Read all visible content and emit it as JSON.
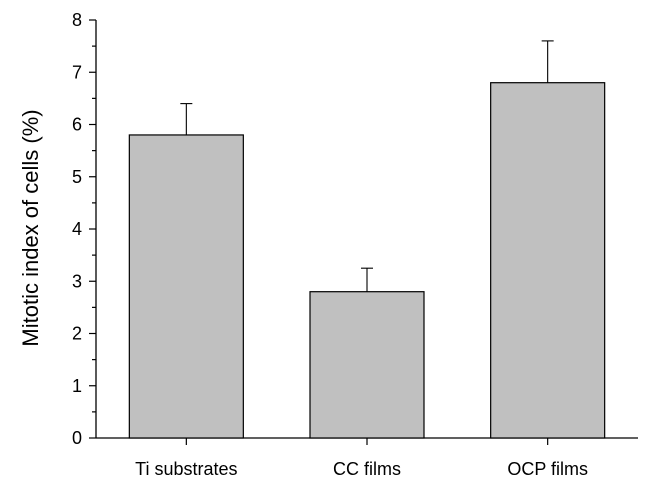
{
  "chart_data": {
    "type": "bar",
    "categories": [
      "Ti substrates",
      "CC films",
      "OCP films"
    ],
    "values": [
      5.8,
      2.8,
      6.8
    ],
    "error_upper": [
      6.4,
      3.25,
      7.6
    ],
    "title": "",
    "xlabel": "",
    "ylabel": "Mitotic index of cells (%)",
    "ylim": [
      0,
      8
    ],
    "yticks": [
      "0",
      "1",
      "2",
      "3",
      "4",
      "5",
      "6",
      "7",
      "8"
    ],
    "grid": false,
    "legend": "none",
    "colors": {
      "bar_fill": "#c0c0c0",
      "bar_stroke": "#000000",
      "axis": "#000000"
    }
  }
}
